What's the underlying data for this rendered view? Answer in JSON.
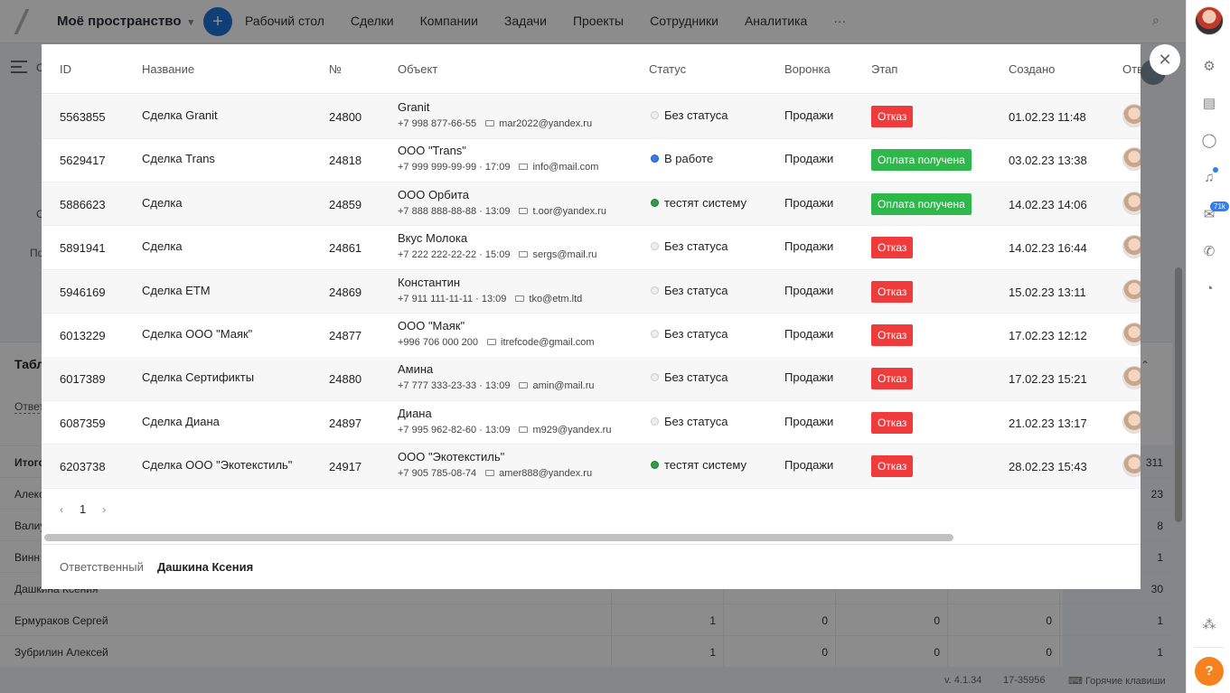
{
  "app": {
    "workspace": "Моё пространство",
    "nav": [
      "Рабочий стол",
      "Сделки",
      "Компании",
      "Задачи",
      "Проекты",
      "Сотрудники",
      "Аналитика"
    ],
    "nav_more": "···"
  },
  "background": {
    "panel_title": "Табл",
    "panel_sub": "Ответ",
    "fragments": [
      "С",
      "С",
      "По"
    ],
    "rows": [
      {
        "name": "Итого",
        "c1": "",
        "c2": "",
        "c3": "",
        "c4": "",
        "total": "311"
      },
      {
        "name": "Алекс",
        "c1": "",
        "c2": "",
        "c3": "",
        "c4": "",
        "total": "23"
      },
      {
        "name": "Валиу",
        "c1": "",
        "c2": "",
        "c3": "",
        "c4": "",
        "total": "8"
      },
      {
        "name": "Винн",
        "c1": "",
        "c2": "",
        "c3": "",
        "c4": "",
        "total": "1"
      },
      {
        "name": "Дашкина Ксения",
        "c1": "",
        "c2": "",
        "c3": "",
        "c4": "",
        "total": "30"
      },
      {
        "name": "Ермураков Сергей",
        "c1": "1",
        "c2": "0",
        "c3": "0",
        "c4": "0",
        "total": "1"
      },
      {
        "name": "Зубрилин Алексей",
        "c1": "1",
        "c2": "0",
        "c3": "0",
        "c4": "0",
        "total": "1"
      }
    ],
    "footer": {
      "version": "v. 4.1.34",
      "build": "17-35956",
      "hotkeys": "Горячие клавиши"
    }
  },
  "rail": {
    "badge": "71k",
    "help": "?"
  },
  "modal": {
    "columns": [
      "ID",
      "Название",
      "№",
      "Объект",
      "Статус",
      "Воронка",
      "Этап",
      "Создано",
      "Отв"
    ],
    "rows": [
      {
        "id": "5563855",
        "name": "Сделка Granit",
        "num": "24800",
        "obj": "Granit",
        "phone": "+7 998 877-66-55",
        "email": "mar2022@yandex.ru",
        "status": "Без статуса",
        "dot": "grey",
        "funnel": "Продажи",
        "stage": "Отказ",
        "stage_color": "red",
        "created": "01.02.23 11:48"
      },
      {
        "id": "5629417",
        "name": "Сделка Trans",
        "num": "24818",
        "obj": "ООО \"Trans\"",
        "phone": "+7 999 999-99-99 · 17:09",
        "email": "info@mail.com",
        "status": "В работе",
        "dot": "blue",
        "funnel": "Продажи",
        "stage": "Оплата получена",
        "stage_color": "green",
        "created": "03.02.23 13:38"
      },
      {
        "id": "5886623",
        "name": "Сделка",
        "num": "24859",
        "obj": "ООО Орбита",
        "phone": "+7 888 888-88-88 · 13:09",
        "email": "t.oor@yandex.ru",
        "status": "тестят систему",
        "dot": "green",
        "funnel": "Продажи",
        "stage": "Оплата получена",
        "stage_color": "green",
        "created": "14.02.23 14:06"
      },
      {
        "id": "5891941",
        "name": "Сделка",
        "num": "24861",
        "obj": "Вкус Молока",
        "phone": "+7 222 222-22-22 · 15:09",
        "email": "sergs@mail.ru",
        "status": "Без статуса",
        "dot": "grey",
        "funnel": "Продажи",
        "stage": "Отказ",
        "stage_color": "red",
        "created": "14.02.23 16:44"
      },
      {
        "id": "5946169",
        "name": "Сделка ETM",
        "num": "24869",
        "obj": "Константин",
        "phone": "+7 911 111-11-11 · 13:09",
        "email": "tko@etm.ltd",
        "status": "Без статуса",
        "dot": "grey",
        "funnel": "Продажи",
        "stage": "Отказ",
        "stage_color": "red",
        "created": "15.02.23 13:11"
      },
      {
        "id": "6013229",
        "name": "Сделка ООО \"Маяк\"",
        "num": "24877",
        "obj": "ООО \"Маяк\"",
        "phone": "+996 706 000 200",
        "email": "itrefcode@gmail.com",
        "status": "Без статуса",
        "dot": "grey",
        "funnel": "Продажи",
        "stage": "Отказ",
        "stage_color": "red",
        "created": "17.02.23 12:12"
      },
      {
        "id": "6017389",
        "name": "Сделка Сертификты",
        "num": "24880",
        "obj": "Амина",
        "phone": "+7 777 333-23-33 · 13:09",
        "email": "amin@mail.ru",
        "status": "Без статуса",
        "dot": "grey",
        "funnel": "Продажи",
        "stage": "Отказ",
        "stage_color": "red",
        "created": "17.02.23 15:21"
      },
      {
        "id": "6087359",
        "name": "Сделка  Диана",
        "num": "24897",
        "obj": "Диана",
        "phone": "+7 995 962-82-60 · 13:09",
        "email": "m929@yandex.ru",
        "status": "Без статуса",
        "dot": "grey",
        "funnel": "Продажи",
        "stage": "Отказ",
        "stage_color": "red",
        "created": "21.02.23 13:17"
      },
      {
        "id": "6203738",
        "name": "Сделка ООО \"Экотекстиль\"",
        "num": "24917",
        "obj": "ООО \"Экотекстиль\"",
        "phone": "+7 905 785-08-74",
        "email": "amer888@yandex.ru",
        "status": "тестят систему",
        "dot": "green",
        "funnel": "Продажи",
        "stage": "Отказ",
        "stage_color": "red",
        "created": "28.02.23 15:43"
      }
    ],
    "pager": {
      "page": "1",
      "prev": "‹",
      "next": "›"
    },
    "footer": {
      "label": "Ответственный",
      "value": "Дашкина Ксения"
    },
    "close": "✕"
  }
}
